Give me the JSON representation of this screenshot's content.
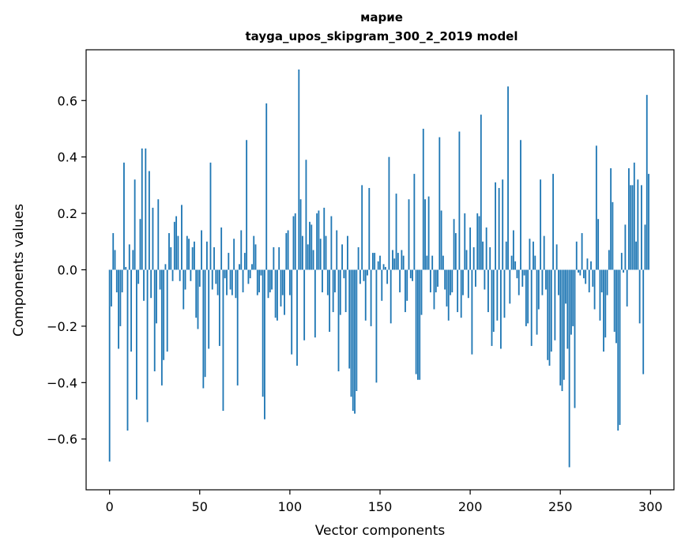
{
  "chart_data": {
    "type": "bar",
    "title_line1": "марие",
    "title_line2": "tayga_upos_skipgram_300_2_2019 model",
    "xlabel": "Vector components",
    "ylabel": "Components values",
    "xlim": [
      -13,
      313
    ],
    "ylim": [
      -0.78,
      0.78
    ],
    "xticks": [
      0,
      50,
      100,
      150,
      200,
      250,
      300
    ],
    "yticks": [
      -0.6,
      -0.4,
      -0.2,
      0.0,
      0.2,
      0.4,
      0.6
    ],
    "ytick_labels": [
      "−0.6",
      "−0.4",
      "−0.2",
      "0.0",
      "0.2",
      "0.4",
      "0.6"
    ],
    "bar_color": "#1f77b4",
    "values": [
      -0.68,
      -0.13,
      0.13,
      0.07,
      -0.08,
      -0.28,
      -0.2,
      -0.08,
      0.38,
      0.01,
      -0.57,
      0.09,
      -0.29,
      0.07,
      0.32,
      -0.46,
      -0.05,
      0.18,
      0.43,
      -0.11,
      0.43,
      -0.54,
      0.35,
      -0.1,
      0.22,
      -0.36,
      -0.19,
      0.25,
      -0.07,
      -0.41,
      -0.32,
      0.02,
      -0.29,
      0.13,
      0.08,
      -0.04,
      0.17,
      0.19,
      0.12,
      -0.04,
      0.23,
      -0.14,
      -0.07,
      0.12,
      0.11,
      -0.04,
      0.08,
      0.1,
      -0.17,
      -0.21,
      -0.06,
      0.14,
      -0.42,
      -0.38,
      0.1,
      -0.28,
      0.38,
      -0.07,
      0.08,
      -0.05,
      -0.09,
      -0.27,
      0.15,
      -0.5,
      -0.03,
      -0.09,
      0.06,
      -0.07,
      -0.09,
      0.11,
      -0.1,
      -0.41,
      0.02,
      0.14,
      -0.08,
      0.06,
      0.46,
      -0.05,
      -0.03,
      0.02,
      0.12,
      0.09,
      -0.09,
      -0.08,
      -0.02,
      -0.45,
      -0.53,
      0.59,
      -0.1,
      -0.08,
      -0.07,
      0.08,
      -0.17,
      -0.18,
      0.08,
      -0.13,
      -0.09,
      -0.16,
      0.13,
      0.14,
      -0.09,
      -0.3,
      0.19,
      0.2,
      -0.34,
      0.71,
      0.25,
      0.12,
      -0.25,
      0.39,
      0.09,
      0.17,
      0.16,
      0.07,
      -0.24,
      0.2,
      0.21,
      0.11,
      -0.08,
      0.22,
      0.12,
      -0.09,
      -0.22,
      0.19,
      -0.15,
      -0.08,
      0.14,
      -0.36,
      -0.16,
      0.09,
      -0.03,
      -0.15,
      0.12,
      -0.35,
      -0.45,
      -0.5,
      -0.51,
      -0.43,
      0.08,
      -0.05,
      0.3,
      -0.04,
      -0.18,
      -0.02,
      0.29,
      -0.2,
      0.06,
      0.06,
      -0.4,
      0.03,
      0.05,
      -0.11,
      0.02,
      0.01,
      -0.05,
      0.4,
      -0.19,
      0.07,
      0.04,
      0.27,
      0.06,
      -0.08,
      0.07,
      0.05,
      -0.15,
      -0.11,
      0.25,
      -0.03,
      -0.04,
      0.34,
      -0.37,
      -0.39,
      -0.39,
      -0.16,
      0.5,
      0.25,
      0.05,
      0.26,
      -0.08,
      0.05,
      -0.14,
      -0.08,
      -0.06,
      0.47,
      0.21,
      0.05,
      -0.07,
      -0.13,
      -0.18,
      -0.09,
      -0.08,
      0.18,
      0.13,
      -0.15,
      0.49,
      -0.17,
      -0.09,
      0.2,
      0.07,
      -0.1,
      0.15,
      -0.3,
      0.08,
      -0.06,
      0.2,
      0.19,
      0.55,
      0.1,
      -0.07,
      0.15,
      -0.15,
      0.08,
      -0.27,
      -0.22,
      0.31,
      -0.18,
      0.29,
      -0.28,
      0.32,
      -0.17,
      0.1,
      0.65,
      -0.12,
      0.05,
      0.14,
      0.03,
      -0.03,
      -0.09,
      0.46,
      -0.06,
      -0.02,
      -0.2,
      -0.19,
      0.11,
      -0.27,
      0.1,
      0.05,
      -0.23,
      -0.14,
      0.32,
      -0.09,
      0.12,
      -0.07,
      -0.32,
      -0.34,
      -0.29,
      0.34,
      -0.25,
      0.09,
      -0.09,
      -0.41,
      -0.43,
      -0.39,
      -0.12,
      -0.28,
      -0.7,
      -0.23,
      -0.2,
      -0.49,
      0.1,
      -0.01,
      -0.02,
      0.13,
      -0.03,
      -0.05,
      0.04,
      -0.08,
      0.03,
      -0.06,
      -0.14,
      0.44,
      0.18,
      -0.18,
      -0.08,
      -0.29,
      -0.24,
      -0.09,
      0.07,
      0.36,
      0.24,
      -0.22,
      -0.26,
      -0.57,
      -0.55,
      0.06,
      -0.01,
      0.16,
      -0.13,
      0.36,
      0.3,
      0.3,
      0.38,
      0.1,
      0.32,
      -0.19,
      0.3,
      -0.37,
      0.16,
      0.62,
      0.34
    ]
  }
}
